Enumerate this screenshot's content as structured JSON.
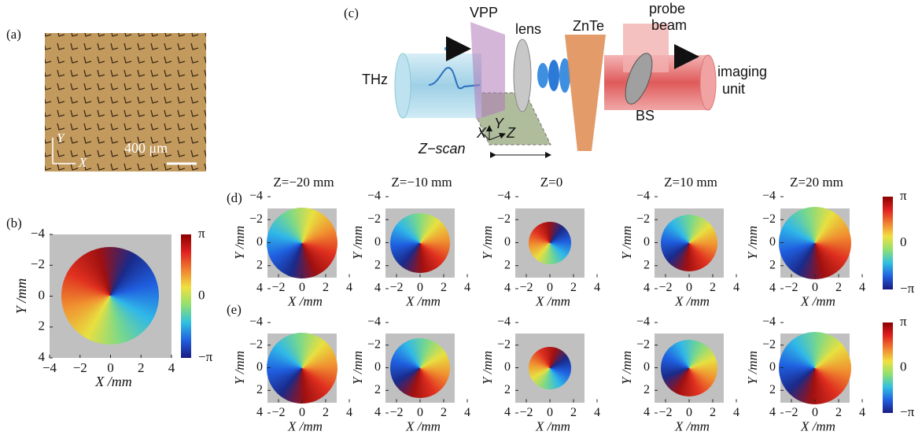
{
  "panels": {
    "a": {
      "label": "(a)",
      "y_axis": "Y",
      "x_axis": "X",
      "scale_bar": "400 μm"
    },
    "b": {
      "label": "(b)"
    },
    "c": {
      "label": "(c)",
      "thz": "THz",
      "vpp": "VPP",
      "lens": "lens",
      "znte": "ZnTe",
      "probe": "probe",
      "beam": "beam",
      "imaging": "imaging",
      "unit": "unit",
      "bs": "BS",
      "z_scan": "Z−scan",
      "x": "X",
      "y": "Y",
      "z": "Z"
    },
    "d": {
      "label": "(d)",
      "titles": [
        "Z=−20 mm",
        "Z=−10 mm",
        "Z=0",
        "Z=10 mm",
        "Z=20 mm"
      ]
    },
    "e": {
      "label": "(e)"
    }
  },
  "axes": {
    "x_label": "X /mm",
    "y_label": "Y /mm",
    "ticks": [
      "−4",
      "−2",
      "0",
      "2",
      "4"
    ],
    "colorbar": [
      "π",
      "0",
      "−π"
    ]
  }
}
